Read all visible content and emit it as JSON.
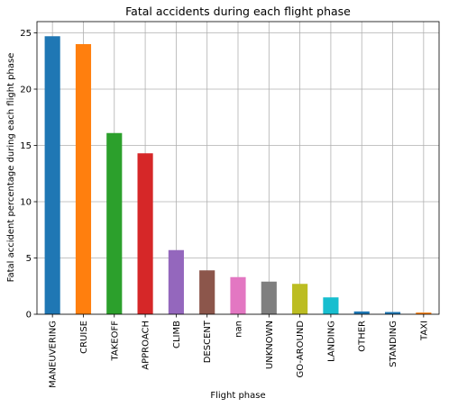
{
  "chart_data": {
    "type": "bar",
    "title": "Fatal accidents during each flight phase",
    "xlabel": "Flight phase",
    "ylabel": "Fatal accident percentage during each flight phase",
    "categories": [
      "MANEUVERING",
      "CRUISE",
      "TAKEOFF",
      "APPROACH",
      "CLIMB",
      "DESCENT",
      "nan",
      "UNKNOWN",
      "GO-AROUND",
      "LANDING",
      "OTHER",
      "STANDING",
      "TAXI"
    ],
    "values": [
      24.7,
      24.0,
      16.1,
      14.3,
      5.7,
      3.9,
      3.3,
      2.9,
      2.7,
      1.5,
      0.25,
      0.2,
      0.15
    ],
    "colors": [
      "#1f77b4",
      "#ff7f0e",
      "#2ca02c",
      "#d62728",
      "#9467bd",
      "#8c564b",
      "#e377c2",
      "#7f7f7f",
      "#bcbd22",
      "#17becf",
      "#1f77b4",
      "#1f77b4",
      "#ff7f0e"
    ],
    "ylim": [
      0,
      26
    ],
    "yticks": [
      0,
      5,
      10,
      15,
      20,
      25
    ],
    "grid": true,
    "legend": false
  }
}
